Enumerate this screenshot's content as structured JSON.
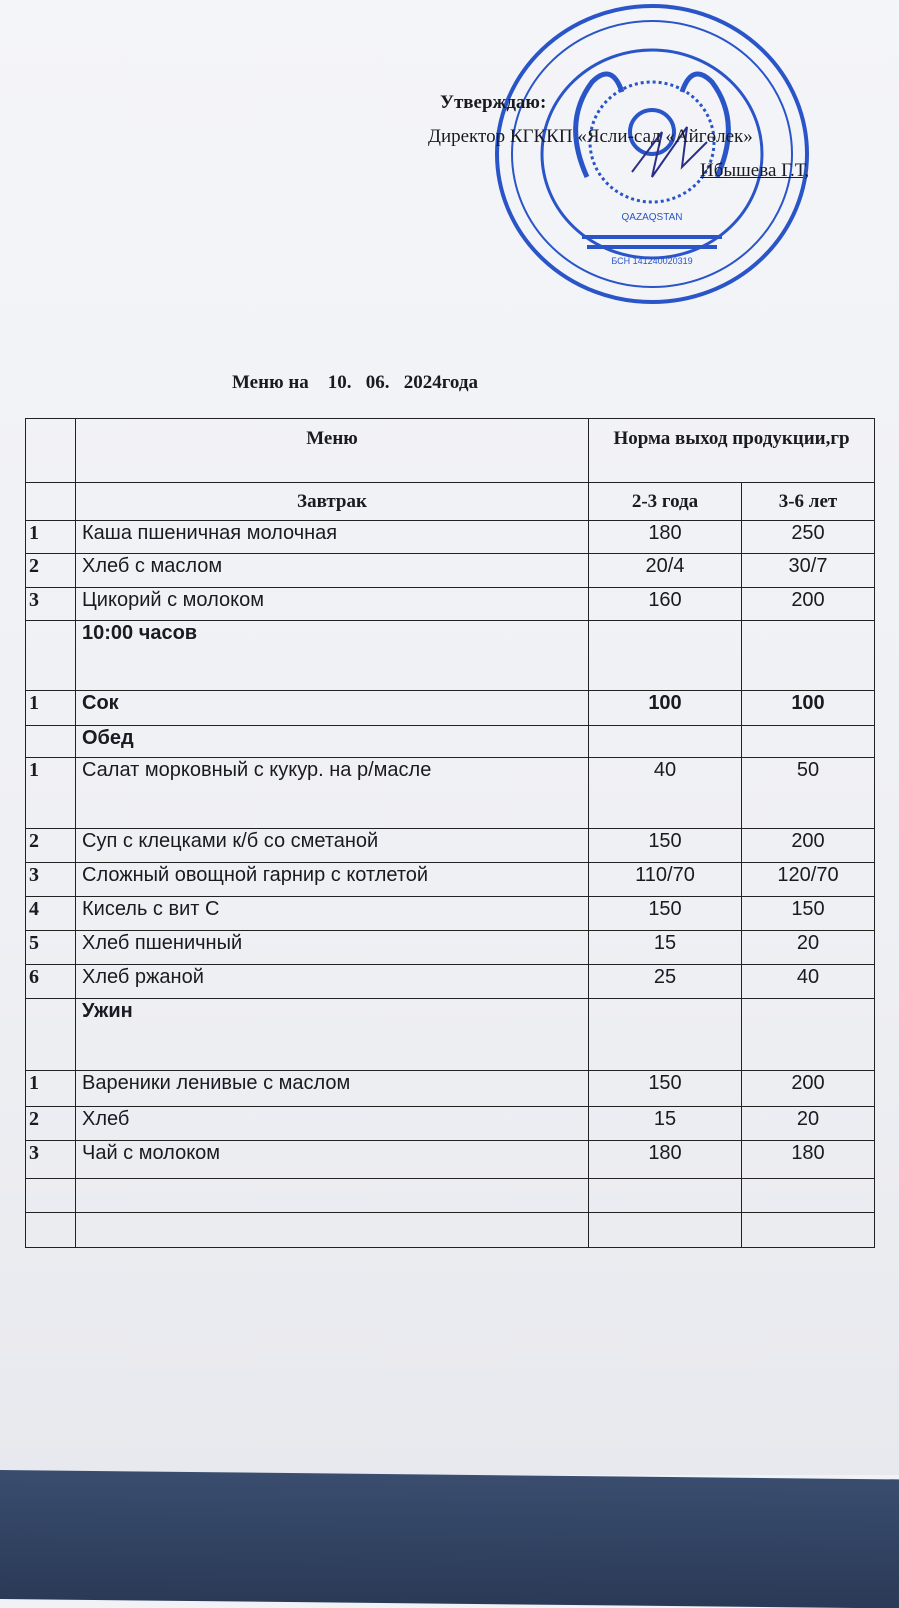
{
  "approval": {
    "heading": "Утверждаю:",
    "line1": "Директор КГККП «Ясли-сад «Айгөлек»",
    "line2": "Ибышева Г.Т,"
  },
  "stamp": {
    "center_text": "QAZAQSTAN",
    "bin": "БСН 141240020319",
    "color": "#2a55c8"
  },
  "title": "Меню на    10.   06.   2024года",
  "table": {
    "header": {
      "menu": "Меню",
      "norm": "Норма выход продукции,гр"
    },
    "subheader": {
      "meal": "Завтрак",
      "age1": "2-3 года",
      "age2": "3-6 лет"
    },
    "rows": [
      {
        "n": "1",
        "name": "Каша  пшеничная  молочная",
        "a": "180",
        "b": "250"
      },
      {
        "n": "2",
        "name": "Хлеб с маслом",
        "a": "20/4",
        "b": "30/7"
      },
      {
        "n": "3",
        "name": "Цикорий с молоком",
        "a": "160",
        "b": "200"
      },
      {
        "n": "",
        "name": "10:00 часов",
        "a": "",
        "b": "",
        "section": true
      },
      {
        "n": "1",
        "name": "Сок",
        "a": "100",
        "b": "100",
        "bold": true
      },
      {
        "n": "",
        "name": "Обед",
        "a": "",
        "b": "",
        "section": true
      },
      {
        "n": "1",
        "name": "Салат  морковный  с кукур. на р/масле",
        "a": "40",
        "b": "50"
      },
      {
        "n": "2",
        "name": "Суп с клецками  к/б со сметаной",
        "a": "150",
        "b": "200"
      },
      {
        "n": "3",
        "name": "Сложный овощной гарнир с котлетой",
        "a": "110/70",
        "b": "120/70"
      },
      {
        "n": "4",
        "name": "Кисель с вит С",
        "a": "150",
        "b": "150"
      },
      {
        "n": "5",
        "name": "Хлеб пшеничный",
        "a": "15",
        "b": "20"
      },
      {
        "n": "6",
        "name": "Хлеб ржаной",
        "a": "25",
        "b": "40"
      },
      {
        "n": "",
        "name": "Ужин",
        "a": "",
        "b": "",
        "section": true
      },
      {
        "n": "1",
        "name": "Вареники ленивые с маслом",
        "a": "150",
        "b": "200"
      },
      {
        "n": "2",
        "name": "Хлеб",
        "a": "15",
        "b": "20"
      },
      {
        "n": "3",
        "name": "Чай с молоком",
        "a": "180",
        "b": "180"
      },
      {
        "n": "",
        "name": "",
        "a": "",
        "b": ""
      },
      {
        "n": "",
        "name": "",
        "a": "",
        "b": ""
      }
    ]
  }
}
